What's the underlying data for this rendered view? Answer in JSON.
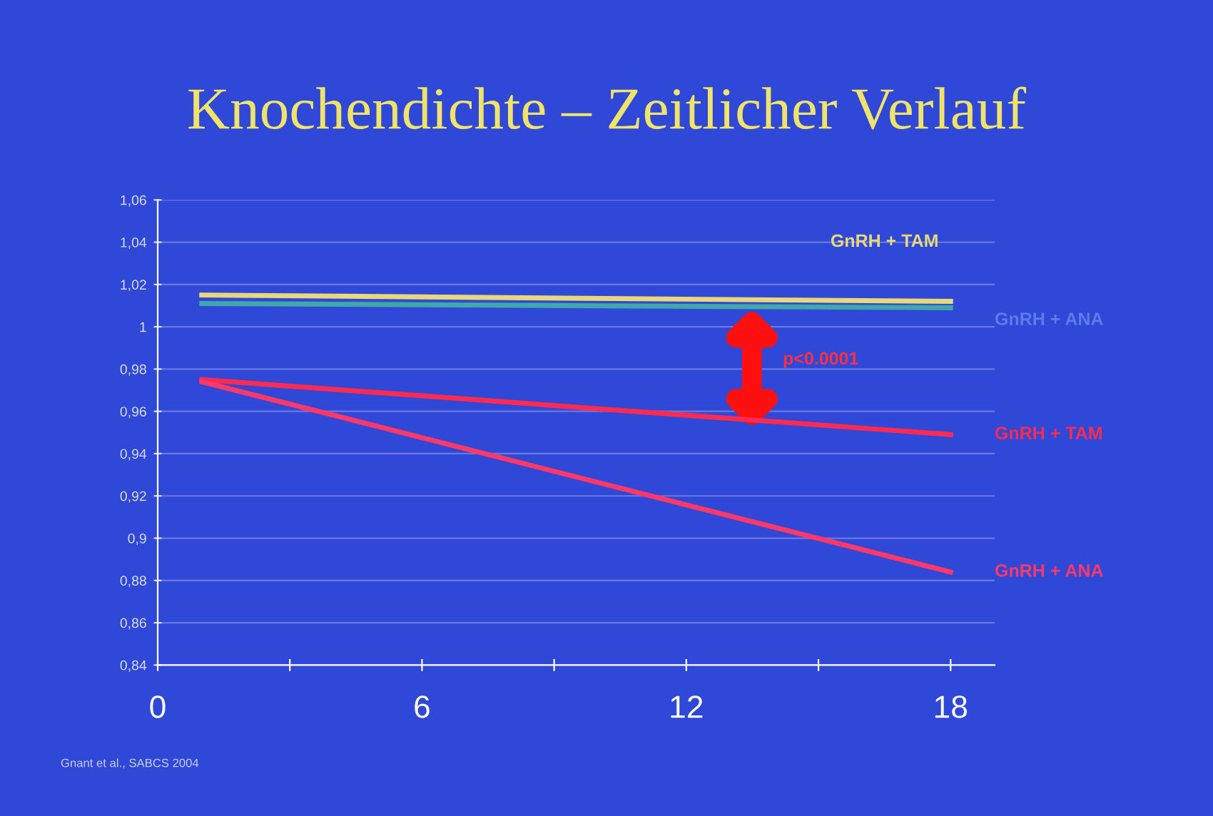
{
  "chart_data": {
    "type": "line",
    "title": "Knochendichte – Zeitlicher Verlauf",
    "x": [
      1,
      18
    ],
    "series": [
      {
        "name": "GnRH + TAM",
        "color": "#e8d878",
        "values": [
          1.015,
          1.012
        ]
      },
      {
        "name": "GnRH + ANA",
        "color": "#40a8a8",
        "values": [
          1.011,
          1.009
        ]
      },
      {
        "name": "GnRH + TAM",
        "color": "#ff2a50",
        "values": [
          0.975,
          0.949
        ]
      },
      {
        "name": "GnRH + ANA",
        "color": "#ff3868",
        "values": [
          0.974,
          0.884
        ]
      }
    ],
    "xlim": [
      0,
      19
    ],
    "xticks": [
      0,
      {
        "value": 3,
        "label": null
      },
      6,
      {
        "value": 9,
        "label": null
      },
      12,
      {
        "value": 15,
        "label": null
      },
      18
    ],
    "ylim": [
      0.84,
      1.06
    ],
    "yticks": [
      {
        "value": 0.84,
        "label": "0,84"
      },
      {
        "value": 0.86,
        "label": "0,86"
      },
      {
        "value": 0.88,
        "label": "0,88"
      },
      {
        "value": 0.9,
        "label": "0,9"
      },
      {
        "value": 0.92,
        "label": "0,92"
      },
      {
        "value": 0.94,
        "label": "0,94"
      },
      {
        "value": 0.96,
        "label": "0,96"
      },
      {
        "value": 0.98,
        "label": "0,98"
      },
      {
        "value": 1,
        "label": "1"
      },
      {
        "value": 1.02,
        "label": "1,02"
      },
      {
        "value": 1.04,
        "label": "1,04"
      },
      {
        "value": 1.06,
        "label": "1,06"
      }
    ],
    "grid": "y",
    "legend": false,
    "marker": "none",
    "line_style": "solid",
    "annotations": [
      "p<0.0001",
      "Gnant et al., SABCS 2004"
    ]
  }
}
